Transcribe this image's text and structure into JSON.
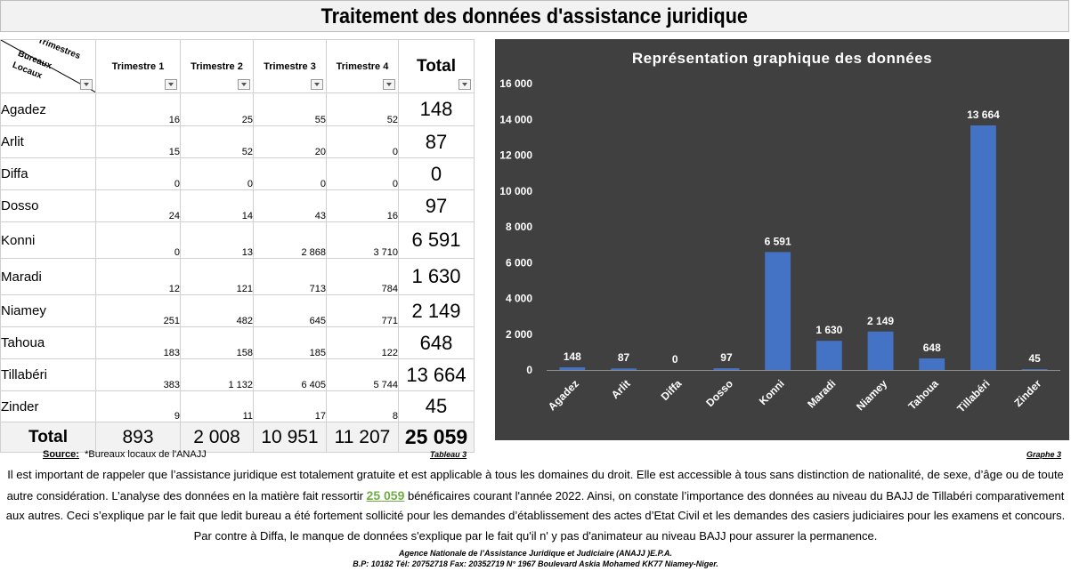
{
  "title": "Traitement des données d'assistance juridique",
  "table": {
    "corner_labels": [
      "Trimestres",
      "Bureaux",
      "Locaux"
    ],
    "headers": [
      "Trimestre 1",
      "Trimestre 2",
      "Trimestre 3",
      "Trimestre 4",
      "Total"
    ],
    "rows": [
      {
        "office": "Agadez",
        "q": [
          "16",
          "25",
          "55",
          "52"
        ],
        "total": "148"
      },
      {
        "office": "Arlit",
        "q": [
          "15",
          "52",
          "20",
          "0"
        ],
        "total": "87"
      },
      {
        "office": "Diffa",
        "q": [
          "0",
          "0",
          "0",
          "0"
        ],
        "total": "0"
      },
      {
        "office": "Dosso",
        "q": [
          "24",
          "14",
          "43",
          "16"
        ],
        "total": "97"
      },
      {
        "office": "Konni",
        "q": [
          "0",
          "13",
          "2 868",
          "3 710"
        ],
        "total": "6 591"
      },
      {
        "office": "Maradi",
        "q": [
          "12",
          "121",
          "713",
          "784"
        ],
        "total": "1 630"
      },
      {
        "office": "Niamey",
        "q": [
          "251",
          "482",
          "645",
          "771"
        ],
        "total": "2 149"
      },
      {
        "office": "Tahoua",
        "q": [
          "183",
          "158",
          "185",
          "122"
        ],
        "total": "648"
      },
      {
        "office": "Tillabéri",
        "q": [
          "383",
          "1 132",
          "6 405",
          "5 744"
        ],
        "total": "13 664"
      },
      {
        "office": "Zinder",
        "q": [
          "9",
          "11",
          "17",
          "8"
        ],
        "total": "45"
      }
    ],
    "total_row": {
      "label": "Total",
      "q": [
        "893",
        "2 008",
        "10 951",
        "11 207"
      ],
      "total": "25 059"
    }
  },
  "source_label": "Source:",
  "source_text": "*Bureaux locaux de l'ANAJJ",
  "table_caption": "Tableau 3",
  "chart_caption": "Graphe 3",
  "chart_data": {
    "type": "bar",
    "title": "Représentation graphique des données",
    "categories": [
      "Agadez",
      "Arlit",
      "Diffa",
      "Dosso",
      "Konni",
      "Maradi",
      "Niamey",
      "Tahoua",
      "Tillabéri",
      "Zinder"
    ],
    "values": [
      148,
      87,
      0,
      97,
      6591,
      1630,
      2149,
      648,
      13664,
      45
    ],
    "value_labels": [
      "148",
      "87",
      "0",
      "97",
      "6 591",
      "1 630",
      "2 149",
      "648",
      "13 664",
      "45"
    ],
    "y_ticks": [
      "0",
      "2 000",
      "4 000",
      "6 000",
      "8 000",
      "10 000",
      "12 000",
      "14 000",
      "16 000"
    ],
    "ylim": [
      0,
      16000
    ],
    "grid": false,
    "colors": {
      "bar": "#4472c4",
      "background": "#404040",
      "text": "#ffffff"
    }
  },
  "paragraph": {
    "part1": "Il est important de rappeler que l’assistance juridique est totalement gratuite et est applicable à tous les domaines du droit. Elle est accessible à tous sans distinction de nationalité, de sexe, d’âge ou de toute autre considération. L’analyse des données en la matière fait ressortir ",
    "highlight": "25 059",
    "part2": " bénéficaires courant l'année 2022. Ainsi, on constate l’importance des données au niveau du BAJJ de Tillabéri comparativement aux autres. Ceci s’explique par le fait que ledit bureau a été fortement sollicité pour les demandes d’établissement des actes d’Etat Civil et les demandes des casiers judiciaires pour les examens et concours. Par contre à Diffa, le manque de données s'explique par le fait qu'il n' y pas d'animateur au niveau BAJJ pour assurer la permanence."
  },
  "footer": {
    "line1": "Agence Nationale de l’Assistance Juridique et Judiciaire (ANAJJ )E.P.A.",
    "line2": "B.P: 10182 Tél: 20752718 Fax: 20352719 N° 1967 Boulevard Askia Mohamed KK77 Niamey-Niger."
  }
}
